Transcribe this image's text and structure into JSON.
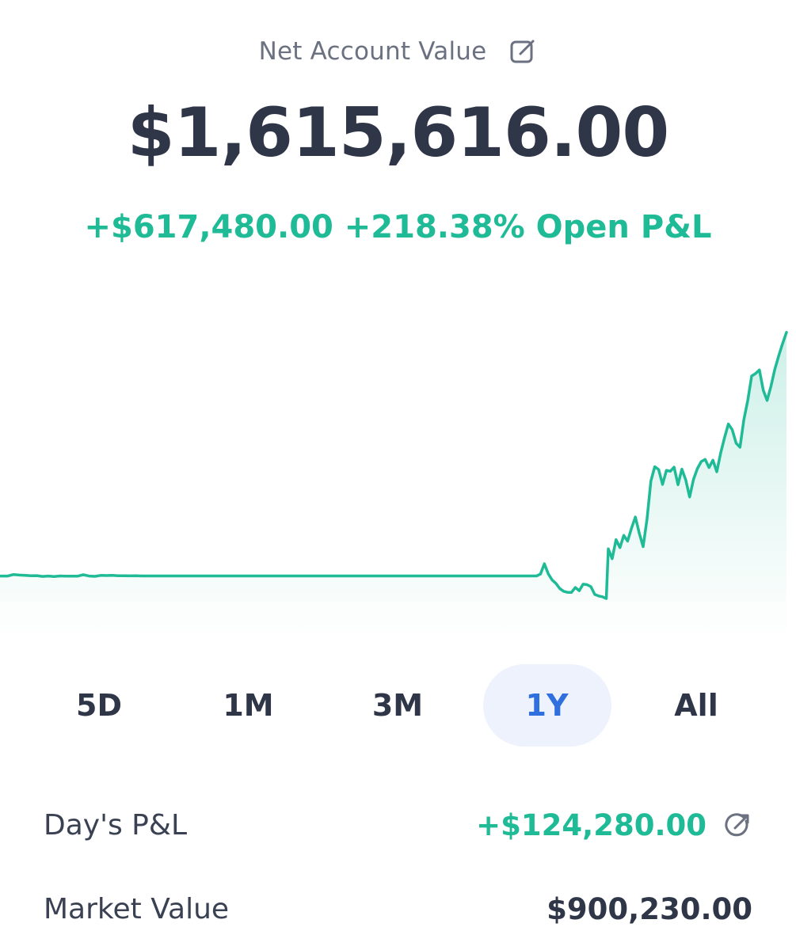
{
  "header": {
    "label": "Net Account Value",
    "edit_icon": "edit-icon"
  },
  "account": {
    "value": "$1,615,616.00",
    "open_pl": "+$617,480.00 +218.38% Open P&L"
  },
  "colors": {
    "text_primary": "#2f3647",
    "positive": "#1fba96",
    "accent": "#2f6fde",
    "tab_active_bg": "#edf2fd",
    "muted": "#6b7180"
  },
  "chart_data": {
    "type": "area",
    "title": "",
    "xlabel": "",
    "ylabel": "",
    "x_unit": "index",
    "y_unit": "USD",
    "ylim": [
      900000,
      1640000
    ],
    "grid": false,
    "color": "#1fba96",
    "series": [
      {
        "name": "",
        "points": [
          [
            0,
            998100
          ],
          [
            4,
            998100
          ],
          [
            7,
            1001800
          ],
          [
            10,
            1000500
          ],
          [
            13,
            999800
          ],
          [
            16,
            998800
          ],
          [
            19,
            999200
          ],
          [
            22,
            997200
          ],
          [
            25,
            998200
          ],
          [
            28,
            996700
          ],
          [
            31,
            998400
          ],
          [
            34,
            997800
          ],
          [
            37,
            998000
          ],
          [
            40,
            997700
          ],
          [
            43,
            1001300
          ],
          [
            46,
            998100
          ],
          [
            49,
            997400
          ],
          [
            52,
            999800
          ],
          [
            55,
            999400
          ],
          [
            58,
            999900
          ],
          [
            61,
            998900
          ],
          [
            64,
            998700
          ],
          [
            67,
            998600
          ],
          [
            70,
            998700
          ],
          [
            73,
            998400
          ],
          [
            76,
            998400
          ],
          [
            80,
            998400
          ],
          [
            100,
            998400
          ],
          [
            200,
            998400
          ],
          [
            250,
            998400
          ],
          [
            260,
            998400
          ],
          [
            270,
            998400
          ],
          [
            277,
            998400
          ],
          [
            279,
            1003000
          ],
          [
            281,
            1028400
          ],
          [
            283,
            1003600
          ],
          [
            285,
            988500
          ],
          [
            287,
            980000
          ],
          [
            289,
            967200
          ],
          [
            291,
            960600
          ],
          [
            293,
            958000
          ],
          [
            295,
            957800
          ],
          [
            297,
            970000
          ],
          [
            299,
            962000
          ],
          [
            301,
            978000
          ],
          [
            303,
            977000
          ],
          [
            305,
            972000
          ],
          [
            307,
            952800
          ],
          [
            309,
            949000
          ],
          [
            311,
            947200
          ],
          [
            313,
            942700
          ],
          [
            314,
            1065000
          ],
          [
            316,
            1040700
          ],
          [
            318,
            1087500
          ],
          [
            320,
            1068000
          ],
          [
            322,
            1098000
          ],
          [
            324,
            1084000
          ],
          [
            326,
            1115700
          ],
          [
            328,
            1143200
          ],
          [
            330,
            1103700
          ],
          [
            332,
            1070300
          ],
          [
            334,
            1138100
          ],
          [
            336,
            1232100
          ],
          [
            338,
            1267100
          ],
          [
            340,
            1260000
          ],
          [
            342,
            1223500
          ],
          [
            344,
            1258100
          ],
          [
            346,
            1255700
          ],
          [
            348,
            1266000
          ],
          [
            350,
            1222600
          ],
          [
            352,
            1261000
          ],
          [
            354,
            1234500
          ],
          [
            356,
            1192400
          ],
          [
            358,
            1236000
          ],
          [
            360,
            1262400
          ],
          [
            362,
            1279700
          ],
          [
            364,
            1285000
          ],
          [
            366,
            1265000
          ],
          [
            368,
            1283000
          ],
          [
            370,
            1254700
          ],
          [
            372,
            1300000
          ],
          [
            374,
            1338000
          ],
          [
            376,
            1372000
          ],
          [
            378,
            1358000
          ],
          [
            380,
            1325000
          ],
          [
            382,
            1315000
          ],
          [
            384,
            1383000
          ],
          [
            386,
            1430000
          ],
          [
            388,
            1490000
          ],
          [
            390,
            1496000
          ],
          [
            392,
            1505000
          ],
          [
            394,
            1455000
          ],
          [
            396,
            1430000
          ],
          [
            398,
            1465000
          ],
          [
            400,
            1507000
          ],
          [
            402,
            1540000
          ],
          [
            404,
            1570000
          ],
          [
            406,
            1597600
          ]
        ]
      }
    ]
  },
  "range_tabs": [
    {
      "label": "5D",
      "active": false
    },
    {
      "label": "1M",
      "active": false
    },
    {
      "label": "3M",
      "active": false
    },
    {
      "label": "1Y",
      "active": true
    },
    {
      "label": "All",
      "active": false
    }
  ],
  "metrics": [
    {
      "label": "Day's P&L",
      "value": "+$124,280.00",
      "positive": true,
      "link_icon": "external-link-icon"
    },
    {
      "label": "Market Value",
      "value": "$900,230.00",
      "positive": false
    }
  ]
}
